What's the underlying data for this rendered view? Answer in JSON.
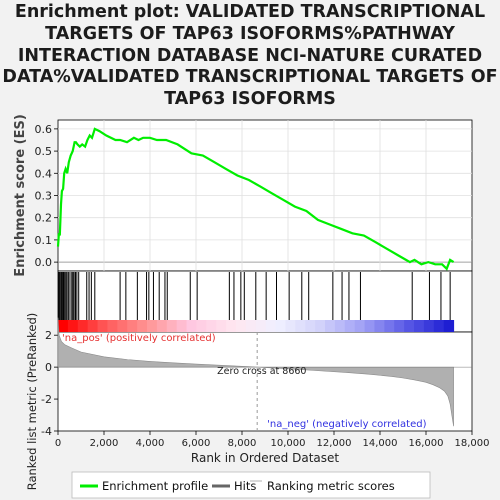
{
  "chart_data": {
    "type": "line",
    "title_lines": [
      "Enrichment plot: VALIDATED TRANSCRIPTIONAL",
      "TARGETS OF TAP63 ISOFORMS%PATHWAY",
      "INTERACTION DATABASE NCI-NATURE CURATED",
      "DATA%VALIDATED TRANSCRIPTIONAL TARGETS OF",
      "TAP63 ISOFORMS"
    ],
    "es_panel": {
      "ylabel": "Enrichment score (ES)",
      "ylim": [
        -0.04,
        0.64
      ],
      "yticks": [
        "0.0",
        "0.1",
        "0.2",
        "0.3",
        "0.4",
        "0.5",
        "0.6"
      ],
      "series": [
        {
          "name": "Enrichment profile",
          "color": "#00ee00",
          "x": [
            0,
            40,
            80,
            130,
            170,
            220,
            270,
            330,
            400,
            470,
            550,
            640,
            720,
            780,
            850,
            950,
            1050,
            1180,
            1280,
            1380,
            1480,
            1600,
            1800,
            2100,
            2500,
            2700,
            3000,
            3300,
            3500,
            3700,
            4000,
            4300,
            4700,
            5200,
            5800,
            6300,
            6800,
            7300,
            7800,
            8300,
            8800,
            9300,
            9800,
            10300,
            10800,
            11300,
            11800,
            12300,
            12800,
            13300,
            13800,
            14300,
            14800,
            15300,
            15500,
            15800,
            16100,
            16400,
            16700,
            16900,
            17050,
            17200
          ],
          "y": [
            0.07,
            0.13,
            0.12,
            0.26,
            0.32,
            0.33,
            0.4,
            0.42,
            0.4,
            0.45,
            0.48,
            0.5,
            0.54,
            0.54,
            0.53,
            0.52,
            0.53,
            0.52,
            0.55,
            0.57,
            0.56,
            0.6,
            0.59,
            0.57,
            0.55,
            0.55,
            0.54,
            0.56,
            0.55,
            0.56,
            0.56,
            0.55,
            0.55,
            0.53,
            0.49,
            0.48,
            0.45,
            0.42,
            0.39,
            0.37,
            0.34,
            0.31,
            0.28,
            0.25,
            0.23,
            0.19,
            0.17,
            0.15,
            0.13,
            0.12,
            0.09,
            0.06,
            0.03,
            0.0,
            0.01,
            -0.01,
            0.0,
            -0.01,
            -0.01,
            -0.03,
            0.01,
            0.0
          ]
        }
      ]
    },
    "hits": [
      20,
      60,
      100,
      150,
      200,
      240,
      290,
      340,
      390,
      450,
      520,
      600,
      650,
      700,
      760,
      820,
      900,
      1250,
      1350,
      1450,
      1600,
      2700,
      2950,
      3450,
      3850,
      3950,
      4150,
      4400,
      4650,
      4750,
      5750,
      6050,
      7450,
      7650,
      7950,
      8100,
      8600,
      9050,
      9500,
      10050,
      10600,
      10900,
      11950,
      12350,
      12650,
      13150,
      15400,
      16150,
      16650,
      17050
    ],
    "ranked_panel": {
      "ylabel": "Ranked list metric (PreRanked)",
      "ylim": [
        -4,
        2.2
      ],
      "yticks": [
        "2",
        "0",
        "-2",
        "-4"
      ],
      "zero_cross_label": "Zero cross at 8660",
      "zero_cross": 8660,
      "pos_label": "'na_pos' (positively correlated)",
      "neg_label": "'na_neg' (negatively correlated)",
      "profile_x": [
        0,
        50,
        150,
        300,
        600,
        1000,
        2000,
        3000,
        4000,
        5000,
        6000,
        7000,
        8000,
        8660,
        9500,
        10500,
        11500,
        12500,
        13500,
        14500,
        15000,
        15500,
        16000,
        16300,
        16600,
        16800,
        16950,
        17050,
        17120,
        17200
      ],
      "profile_y": [
        3.1,
        2.0,
        1.6,
        1.4,
        1.2,
        0.95,
        0.65,
        0.48,
        0.36,
        0.27,
        0.19,
        0.12,
        0.05,
        0.0,
        -0.07,
        -0.15,
        -0.24,
        -0.33,
        -0.44,
        -0.58,
        -0.68,
        -0.8,
        -0.95,
        -1.1,
        -1.3,
        -1.5,
        -1.8,
        -2.3,
        -3.0,
        -3.7
      ]
    },
    "xaxis": {
      "xlabel": "Rank in Ordered Dataset",
      "xlim": [
        0,
        18000
      ],
      "xticks": [
        "0",
        "2,000",
        "4,000",
        "6,000",
        "8,000",
        "10,000",
        "12,000",
        "14,000",
        "16,000",
        "18,000"
      ]
    },
    "legend": {
      "position": "bottom",
      "items": [
        {
          "label": "Enrichment profile",
          "color": "#00ee00"
        },
        {
          "label": "Hits",
          "color": "#666666"
        },
        {
          "label": "Ranking metric scores",
          "color": "#cccccc"
        }
      ]
    }
  }
}
